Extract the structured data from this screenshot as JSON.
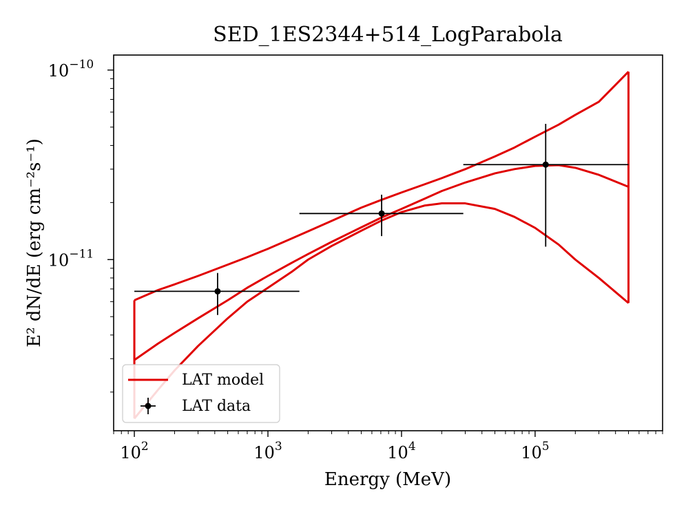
{
  "chart_data": {
    "type": "line",
    "title": "SED_1ES2344+514_LogParabola",
    "xlabel": "Energy (MeV)",
    "ylabel": "E² dN/dE (erg cm⁻²s⁻¹)",
    "x_scale": "log",
    "y_scale": "log",
    "xlim": [
      70,
      900000
    ],
    "ylim": [
      1.25e-12,
      1.2e-10
    ],
    "grid": false,
    "legend_position": "lower-left",
    "colors": {
      "model": "#e00000",
      "data": "#000000"
    },
    "x_ticks": [
      {
        "value": 100,
        "base": "10",
        "exp": "2"
      },
      {
        "value": 1000,
        "base": "10",
        "exp": "3"
      },
      {
        "value": 10000,
        "base": "10",
        "exp": "4"
      },
      {
        "value": 100000,
        "base": "10",
        "exp": "5"
      }
    ],
    "y_ticks": [
      {
        "value": 1e-11,
        "base": "10",
        "exp": "−11"
      },
      {
        "value": 1e-10,
        "base": "10",
        "exp": "−10"
      }
    ],
    "series": [
      {
        "name": "LAT model",
        "kind": "model-band",
        "upper": {
          "x": [
            100,
            150,
            200,
            300,
            500,
            700,
            1000,
            1500,
            2000,
            3000,
            5000,
            7000,
            10000,
            15000,
            20000,
            30000,
            50000,
            70000,
            100000,
            150000,
            200000,
            300000,
            500000
          ],
          "y": [
            6.1e-12,
            6.9e-12,
            7.4e-12,
            8.2e-12,
            9.4e-12,
            1.03e-11,
            1.14e-11,
            1.29e-11,
            1.41e-11,
            1.6e-11,
            1.88e-11,
            2.06e-11,
            2.26e-11,
            2.5e-11,
            2.69e-11,
            3e-11,
            3.5e-11,
            3.9e-11,
            4.45e-11,
            5.15e-11,
            5.8e-11,
            6.8e-11,
            9.8e-11
          ]
        },
        "middle": {
          "x": [
            100,
            150,
            200,
            300,
            500,
            700,
            1000,
            1500,
            2000,
            3000,
            5000,
            7000,
            10000,
            15000,
            20000,
            30000,
            50000,
            70000,
            100000,
            150000,
            200000,
            300000,
            500000
          ],
          "y": [
            2.95e-12,
            3.6e-12,
            4.1e-12,
            4.9e-12,
            6.1e-12,
            7.1e-12,
            8.2e-12,
            9.6e-12,
            1.07e-11,
            1.24e-11,
            1.48e-11,
            1.66e-11,
            1.85e-11,
            2.1e-11,
            2.3e-11,
            2.55e-11,
            2.85e-11,
            3e-11,
            3.12e-11,
            3.15e-11,
            3.05e-11,
            2.8e-11,
            2.42e-11
          ]
        },
        "lower": {
          "x": [
            100,
            150,
            200,
            300,
            500,
            700,
            1000,
            1500,
            2000,
            3000,
            5000,
            7000,
            10000,
            15000,
            20000,
            30000,
            50000,
            70000,
            100000,
            150000,
            200000,
            300000,
            500000
          ],
          "y": [
            1.45e-12,
            2.05e-12,
            2.6e-12,
            3.5e-12,
            4.9e-12,
            6e-12,
            7.1e-12,
            8.6e-12,
            1e-11,
            1.18e-11,
            1.42e-11,
            1.6e-11,
            1.78e-11,
            1.93e-11,
            1.98e-11,
            1.98e-11,
            1.85e-11,
            1.68e-11,
            1.47e-11,
            1.2e-11,
            1e-11,
            8e-12,
            5.9e-12
          ]
        }
      },
      {
        "name": "LAT data",
        "kind": "errorbar",
        "points": [
          {
            "x": 420,
            "y": 6.8e-12,
            "xmin": 100,
            "xmax": 1720,
            "ymin": 5.1e-12,
            "ymax": 8.5e-12
          },
          {
            "x": 7100,
            "y": 1.75e-11,
            "xmin": 1720,
            "xmax": 29000,
            "ymin": 1.33e-11,
            "ymax": 2.2e-11
          },
          {
            "x": 120000,
            "y": 3.17e-11,
            "xmin": 29000,
            "xmax": 500000,
            "ymin": 1.17e-11,
            "ymax": 5.2e-11
          }
        ]
      }
    ]
  }
}
